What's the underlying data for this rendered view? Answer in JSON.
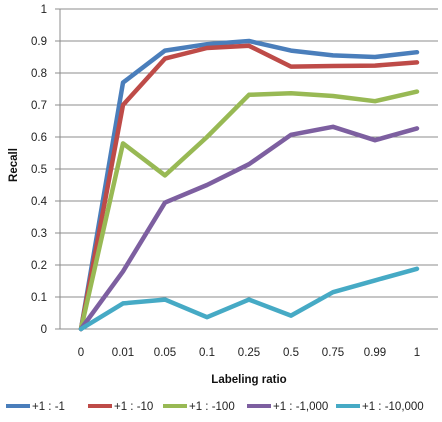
{
  "chart_data": {
    "type": "line",
    "title": "",
    "xlabel": "Labeling ratio",
    "ylabel": "Recall",
    "ylim": [
      0,
      1
    ],
    "yticks": [
      "0",
      "0.1",
      "0.2",
      "0.3",
      "0.4",
      "0.5",
      "0.6",
      "0.7",
      "0.8",
      "0.9",
      "1"
    ],
    "categories": [
      "0",
      "0.01",
      "0.05",
      "0.1",
      "0.25",
      "0.5",
      "0.75",
      "0.99",
      "1"
    ],
    "grid": true,
    "legend_position": "bottom",
    "series": [
      {
        "name": "+1 : -1",
        "color": "#4a7ebb",
        "values": [
          0,
          0.77,
          0.87,
          0.89,
          0.9,
          0.87,
          0.855,
          0.85,
          0.865
        ]
      },
      {
        "name": "+1 : -10",
        "color": "#be4b48",
        "values": [
          0,
          0.7,
          0.845,
          0.878,
          0.885,
          0.82,
          0.822,
          0.823,
          0.833
        ]
      },
      {
        "name": "+1 : -100",
        "color": "#98b954",
        "values": [
          0,
          0.58,
          0.48,
          0.6,
          0.732,
          0.737,
          0.728,
          0.712,
          0.742
        ]
      },
      {
        "name": "+1 : -1,000",
        "color": "#7d5fa0",
        "values": [
          0,
          0.18,
          0.395,
          0.45,
          0.515,
          0.607,
          0.632,
          0.59,
          0.627
        ]
      },
      {
        "name": "+1 : -10,000",
        "color": "#46aac5",
        "values": [
          0,
          0.08,
          0.092,
          0.037,
          0.092,
          0.042,
          0.115,
          0.152,
          0.188
        ]
      }
    ]
  }
}
